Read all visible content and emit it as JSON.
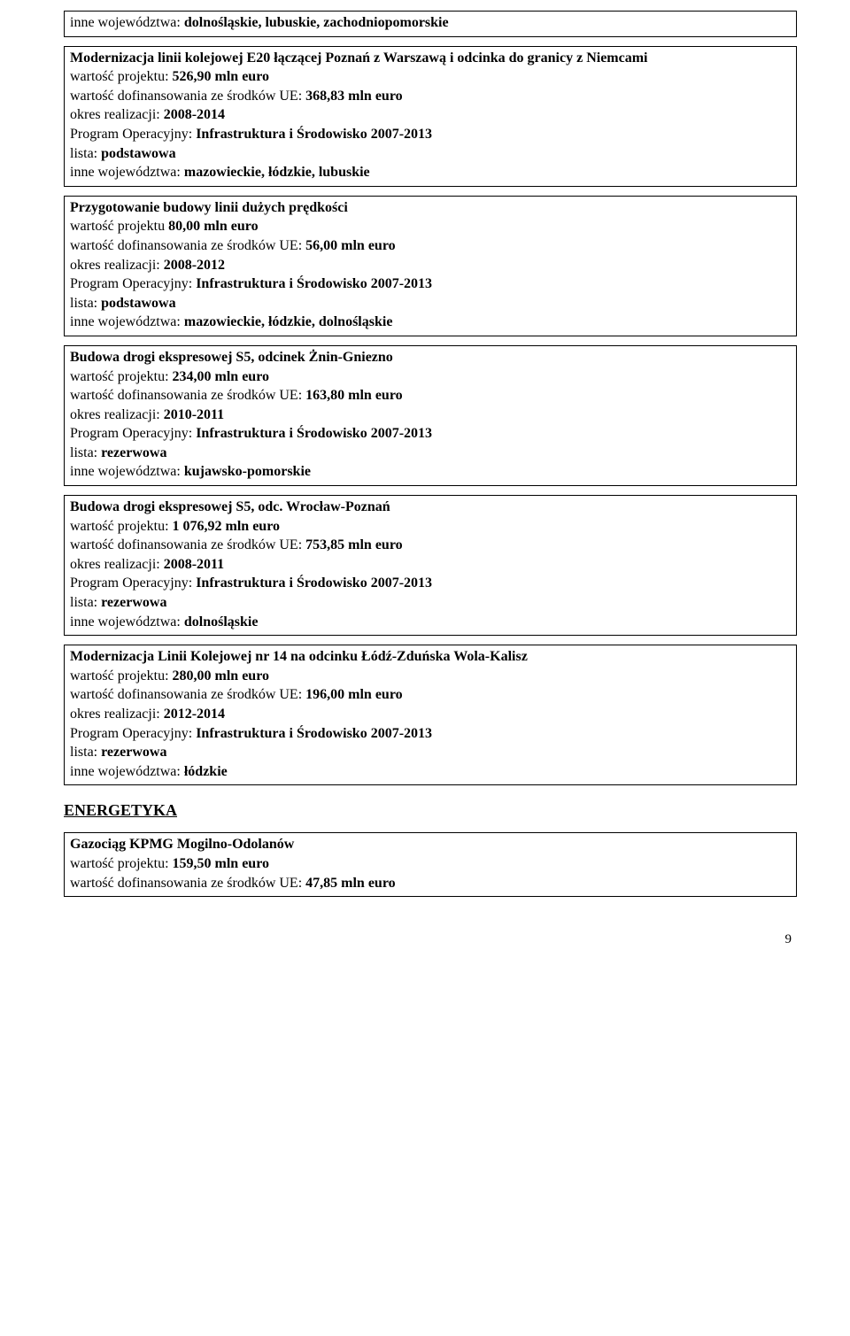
{
  "box1_line1_prefix": "inne województwa: ",
  "box1_line1_bold": "dolnośląskie, lubuskie, zachodniopomorskie",
  "box2_title": "Modernizacja linii kolejowej E20 łączącej Poznań z Warszawą i odcinka do granicy z Niemcami",
  "box2_l1_pre": "wartość projektu: ",
  "box2_l1_b": "526,90 mln euro",
  "box2_l2_pre": "wartość dofinansowania ze środków UE: ",
  "box2_l2_b": "368,83 mln euro",
  "box2_l3_pre": "okres realizacji: ",
  "box2_l3_b": "2008-2014",
  "box2_l4_pre": "Program Operacyjny: ",
  "box2_l4_b": "Infrastruktura i Środowisko 2007-2013",
  "box2_l5_pre": "lista: ",
  "box2_l5_b": "podstawowa",
  "box2_l6_pre": "inne województwa: ",
  "box2_l6_b": "mazowieckie, łódzkie, lubuskie",
  "box3_title": "Przygotowanie budowy linii dużych prędkości",
  "box3_l1_pre": "wartość projektu ",
  "box3_l1_b": "80,00 mln euro",
  "box3_l2_pre": "wartość dofinansowania ze środków UE: ",
  "box3_l2_b": "56,00 mln euro",
  "box3_l3_pre": "okres realizacji: ",
  "box3_l3_b": "2008-2012",
  "box3_l4_pre": "Program Operacyjny: ",
  "box3_l4_b": "Infrastruktura i Środowisko 2007-2013",
  "box3_l5_pre": "lista: ",
  "box3_l5_b": "podstawowa",
  "box3_l6_pre": "inne województwa: ",
  "box3_l6_b": "mazowieckie, łódzkie, dolnośląskie",
  "box4_title": "Budowa drogi ekspresowej S5, odcinek Żnin-Gniezno",
  "box4_l1_pre": "wartość projektu: ",
  "box4_l1_b": "234,00 mln euro",
  "box4_l2_pre": "wartość dofinansowania ze środków UE: ",
  "box4_l2_b": "163,80 mln euro",
  "box4_l3_pre": "okres realizacji: ",
  "box4_l3_b": "2010-2011",
  "box4_l4_pre": "Program Operacyjny: ",
  "box4_l4_b": "Infrastruktura i Środowisko 2007-2013",
  "box4_l5_pre": "lista: ",
  "box4_l5_b": "rezerwowa",
  "box4_l6_pre": "inne województwa: ",
  "box4_l6_b": "kujawsko-pomorskie",
  "box5_title": "Budowa drogi ekspresowej S5, odc. Wrocław-Poznań",
  "box5_l1_pre": "wartość projektu: ",
  "box5_l1_b": "1 076,92 mln euro",
  "box5_l2_pre": "wartość dofinansowania ze środków UE:  ",
  "box5_l2_b": "753,85 mln euro",
  "box5_l3_pre": "okres realizacji: ",
  "box5_l3_b": "2008-2011",
  "box5_l4_pre": "Program Operacyjny: ",
  "box5_l4_b": "Infrastruktura i Środowisko 2007-2013",
  "box5_l5_pre": "lista: ",
  "box5_l5_b": "rezerwowa",
  "box5_l6_pre": "inne województwa: ",
  "box5_l6_b": "dolnośląskie",
  "box6_title": "Modernizacja Linii Kolejowej nr 14 na odcinku Łódź-Zduńska Wola-Kalisz",
  "box6_l1_pre": "wartość projektu: ",
  "box6_l1_b": "280,00 mln euro",
  "box6_l2_pre": "wartość dofinansowania ze środków UE: ",
  "box6_l2_b": "196,00 mln euro",
  "box6_l3_pre": "okres realizacji: ",
  "box6_l3_b": "2012-2014",
  "box6_l4_pre": "Program Operacyjny: ",
  "box6_l4_b": "Infrastruktura i Środowisko 2007-2013",
  "box6_l5_pre": "lista: ",
  "box6_l5_b": "rezerwowa",
  "box6_l6_pre": "inne województwa: ",
  "box6_l6_b": "łódzkie",
  "section_heading": "ENERGETYKA",
  "box7_title": "Gazociąg KPMG Mogilno-Odolanów",
  "box7_l1_pre": "wartość projektu: ",
  "box7_l1_b": "159,50 mln euro",
  "box7_l2_pre": "wartość dofinansowania ze środków UE: ",
  "box7_l2_b": "47,85 mln euro",
  "page_number": "9"
}
